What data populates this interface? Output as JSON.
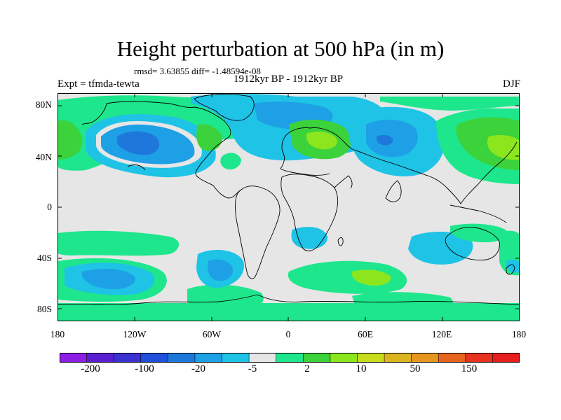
{
  "title": "Height perturbation at 500 hPa (in m)",
  "stats": "rmsd= 3.63855 diff= -1.48594e-08",
  "experiment": "Expt = tfmda-tewta",
  "period": "1912kyr BP - 1912kyr BP",
  "season": "DJF",
  "y_ticks": [
    "80N",
    "40N",
    "0",
    "40S",
    "80S"
  ],
  "x_ticks": [
    "180",
    "120W",
    "60W",
    "0",
    "60E",
    "120E",
    "180"
  ],
  "colorbar": {
    "colors": [
      "#8c1ee6",
      "#5a1ed2",
      "#3c32d2",
      "#1e50dc",
      "#1e78dc",
      "#1ea0e6",
      "#1ec3e6",
      "#e6e6e6",
      "#1ee68c",
      "#3cd23c",
      "#8ce61e",
      "#c8dc1e",
      "#dcb41e",
      "#e6961e",
      "#e6641e",
      "#e6321e",
      "#e61e1e"
    ],
    "labels": [
      "-200",
      "-100",
      "-20",
      "-5",
      "2",
      "10",
      "50",
      "150"
    ]
  },
  "legend_colors": {
    "land_outline": "#000000",
    "background": "#e6e6e6"
  }
}
